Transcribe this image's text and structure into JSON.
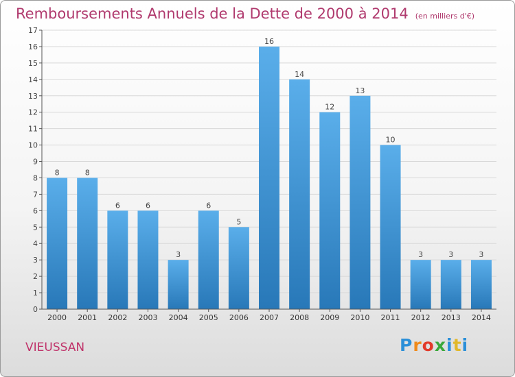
{
  "header": {
    "title": "Remboursements Annuels de la Dette de 2000 à 2014",
    "unit": "(en milliers d'€)"
  },
  "footer": {
    "commune": "VIEUSSAN",
    "logo_letters": [
      "P",
      "r",
      "o",
      "x",
      "i",
      "t",
      "i"
    ]
  },
  "colors": {
    "bar_top": "#5aaeea",
    "bar_bottom": "#2878b8",
    "title": "#b03a6e",
    "grid": "#d8d8d8"
  },
  "chart_data": {
    "type": "bar",
    "title": "Remboursements Annuels de la Dette de 2000 à 2014",
    "xlabel": "",
    "ylabel": "",
    "categories": [
      "2000",
      "2001",
      "2002",
      "2003",
      "2004",
      "2005",
      "2006",
      "2007",
      "2008",
      "2009",
      "2010",
      "2011",
      "2012",
      "2013",
      "2014"
    ],
    "values": [
      8,
      8,
      6,
      6,
      3,
      6,
      5,
      16,
      14,
      12,
      13,
      10,
      3,
      3,
      3
    ],
    "ylim": [
      0,
      17
    ],
    "yticks": [
      0,
      1,
      2,
      3,
      4,
      5,
      6,
      7,
      8,
      9,
      10,
      11,
      12,
      13,
      14,
      15,
      16,
      17
    ],
    "grid": true,
    "data_labels": true
  }
}
